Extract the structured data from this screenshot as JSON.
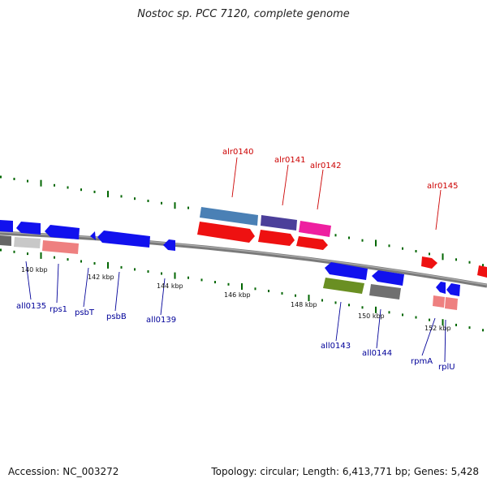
{
  "title": "Nostoc sp. PCC 7120, complete genome",
  "footer": {
    "accession": "Accession: NC_003272",
    "topology": "Topology: circular; Length: 6,413,771 bp; Genes: 5,428"
  },
  "colors": {
    "backbone": "#808080",
    "red_label": "#cc0000",
    "blue_label": "#000099",
    "tick_green": "#006600"
  },
  "ticks": [
    {
      "label": "140 kbp"
    },
    {
      "label": "142 kbp"
    },
    {
      "label": "144 kbp"
    },
    {
      "label": "146 kbp"
    },
    {
      "label": "148 kbp"
    },
    {
      "label": "150 kbp"
    },
    {
      "label": "152 kbp"
    }
  ],
  "top_labels": [
    {
      "label": "alr0140"
    },
    {
      "label": "alr0141"
    },
    {
      "label": "alr0142"
    },
    {
      "label": "alr0145"
    }
  ],
  "bottom_labels": [
    {
      "label": "all0135"
    },
    {
      "label": "rps1"
    },
    {
      "label": "psbT"
    },
    {
      "label": "psbB"
    },
    {
      "label": "all0139"
    },
    {
      "label": "all0143"
    },
    {
      "label": "all0144"
    },
    {
      "label": "rpmA"
    },
    {
      "label": "rplU"
    }
  ]
}
